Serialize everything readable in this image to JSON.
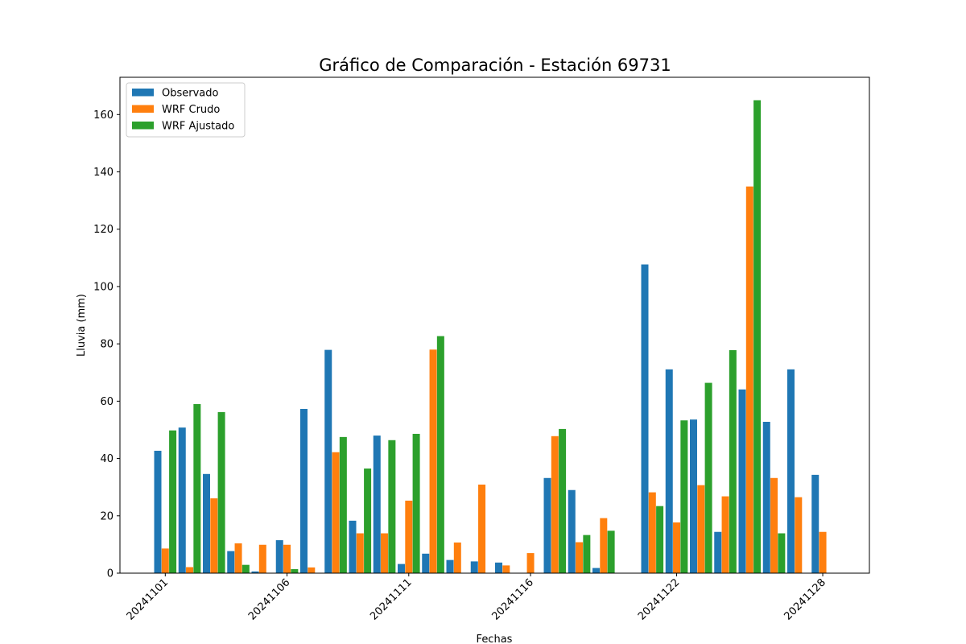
{
  "chart_data": {
    "type": "bar",
    "title": "Gráfico de Comparación - Estación 69731",
    "xlabel": "Fechas",
    "ylabel": "Lluvia (mm)",
    "ylim": [
      0,
      173
    ],
    "yticks": [
      0,
      20,
      40,
      60,
      80,
      100,
      120,
      140,
      160
    ],
    "xtick_labels": [
      "20241101",
      "20241106",
      "20241111",
      "20241116",
      "20241122",
      "20241128"
    ],
    "xtick_dates": [
      "20241101",
      "20241106",
      "20241111",
      "20241116",
      "20241122",
      "20241128"
    ],
    "legend_position": "top-left",
    "grid": false,
    "dates": [
      "20241101",
      "20241102",
      "20241103",
      "20241104",
      "20241105",
      "20241106",
      "20241107",
      "20241108",
      "20241109",
      "20241110",
      "20241111",
      "20241112",
      "20241113",
      "20241114",
      "20241115",
      "20241116",
      "20241117",
      "20241118",
      "20241119",
      "20241120",
      "20241121",
      "20241122",
      "20241123",
      "20241124",
      "20241125",
      "20241126",
      "20241127",
      "20241128",
      "20241129",
      "20241130"
    ],
    "series": [
      {
        "name": "Observado",
        "color": "#1f77b4",
        "values": [
          42.7,
          50.8,
          34.6,
          7.7,
          0.6,
          11.5,
          57.3,
          77.9,
          18.3,
          48.0,
          3.2,
          6.8,
          4.6,
          4.1,
          3.7,
          null,
          33.2,
          29.0,
          1.8,
          null,
          107.7,
          71.1,
          53.6,
          14.4,
          64.1,
          52.8,
          71.1,
          34.3,
          null,
          null
        ]
      },
      {
        "name": "WRF Crudo",
        "color": "#ff7f0e",
        "values": [
          8.6,
          2.1,
          26.1,
          10.4,
          9.9,
          9.9,
          2.0,
          42.2,
          13.9,
          13.9,
          25.3,
          78.0,
          10.7,
          30.9,
          2.7,
          7.0,
          47.8,
          10.8,
          19.2,
          null,
          28.2,
          17.7,
          30.7,
          26.8,
          134.9,
          33.2,
          26.5,
          14.4,
          null,
          null
        ]
      },
      {
        "name": "WRF Ajustado",
        "color": "#2ca02c",
        "values": [
          49.8,
          59.0,
          56.2,
          2.9,
          null,
          1.4,
          null,
          47.5,
          36.5,
          46.4,
          48.6,
          82.7,
          null,
          null,
          null,
          null,
          50.3,
          13.3,
          14.8,
          null,
          23.4,
          53.3,
          66.4,
          77.8,
          165.0,
          13.9,
          null,
          null,
          null,
          null
        ]
      }
    ]
  }
}
